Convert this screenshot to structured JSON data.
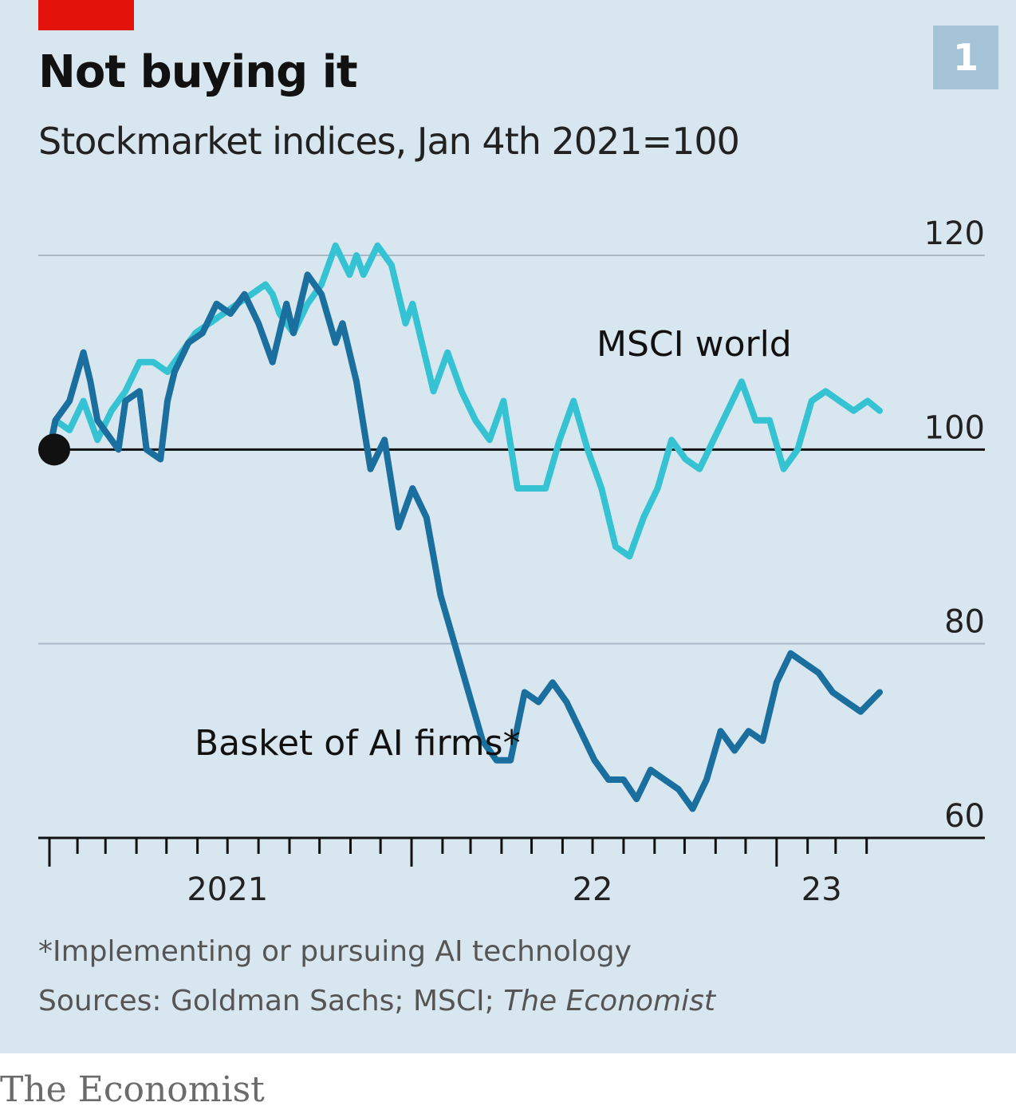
{
  "header": {
    "title": "Not buying it",
    "subtitle": "Stockmarket indices, Jan 4th 2021=100",
    "chart_number": "1"
  },
  "footer": {
    "footnote": "*Implementing or pursuing AI technology",
    "sources_prefix": "Sources: Goldman Sachs; MSCI; ",
    "sources_italic": "The Economist",
    "brand": "The Economist"
  },
  "colors": {
    "background": "#d8e6f0",
    "brand_red": "#e3120b",
    "msci": "#35c3d3",
    "ai_basket": "#1a6f9e",
    "baseline": "#111111",
    "grid": "#a9b9c6"
  },
  "chart_data": {
    "type": "line",
    "title": "Not buying it",
    "subtitle": "Stockmarket indices, Jan 4th 2021=100",
    "ylim": [
      60,
      120
    ],
    "yticks": [
      60,
      80,
      100,
      120
    ],
    "baseline": 100,
    "xlim": [
      "2021-01-04",
      "2023-04-14"
    ],
    "xtick_labels": [
      {
        "label": "2021",
        "date": "2021-07-01"
      },
      {
        "label": "22",
        "date": "2022-07-01"
      },
      {
        "label": "23",
        "date": "2023-02-15"
      }
    ],
    "year_boundaries": [
      "2021-01-01",
      "2022-01-01",
      "2023-01-01"
    ],
    "month_ticks": [
      "2021-02-01",
      "2021-03-01",
      "2021-04-01",
      "2021-05-01",
      "2021-06-01",
      "2021-07-01",
      "2021-08-01",
      "2021-09-01",
      "2021-10-01",
      "2021-11-01",
      "2021-12-01",
      "2022-02-01",
      "2022-03-01",
      "2022-04-01",
      "2022-05-01",
      "2022-06-01",
      "2022-07-01",
      "2022-08-01",
      "2022-09-01",
      "2022-10-01",
      "2022-11-01",
      "2022-12-01",
      "2023-02-01",
      "2023-03-01",
      "2023-04-01"
    ],
    "start_marker": {
      "date": "2021-01-04",
      "value": 100
    },
    "grid": true,
    "series": [
      {
        "name": "MSCI world",
        "color": "#35c3d3",
        "dates": [
          "2021-01-04",
          "2021-01-10",
          "2021-01-24",
          "2021-02-07",
          "2021-02-21",
          "2021-03-07",
          "2021-03-21",
          "2021-04-04",
          "2021-04-18",
          "2021-05-02",
          "2021-05-16",
          "2021-05-30",
          "2021-06-13",
          "2021-06-27",
          "2021-07-11",
          "2021-07-25",
          "2021-08-08",
          "2021-08-15",
          "2021-08-22",
          "2021-09-05",
          "2021-09-19",
          "2021-10-03",
          "2021-10-17",
          "2021-10-31",
          "2021-11-07",
          "2021-11-14",
          "2021-11-28",
          "2021-12-12",
          "2021-12-26",
          "2022-01-02",
          "2022-01-23",
          "2022-02-06",
          "2022-02-20",
          "2022-03-06",
          "2022-03-20",
          "2022-04-03",
          "2022-04-17",
          "2022-05-01",
          "2022-05-15",
          "2022-05-29",
          "2022-06-12",
          "2022-06-26",
          "2022-07-10",
          "2022-07-24",
          "2022-08-07",
          "2022-08-21",
          "2022-09-04",
          "2022-09-18",
          "2022-10-02",
          "2022-10-16",
          "2022-10-30",
          "2022-11-13",
          "2022-11-27",
          "2022-12-11",
          "2022-12-25",
          "2023-01-08",
          "2023-01-22",
          "2023-02-05",
          "2023-02-19",
          "2023-03-05",
          "2023-03-19",
          "2023-04-02",
          "2023-04-14"
        ],
        "values": [
          100,
          103,
          102,
          105,
          101,
          104,
          106,
          109,
          109,
          108,
          110,
          112,
          113,
          114,
          115,
          116,
          117,
          116,
          114,
          112,
          115,
          117,
          121,
          118,
          120,
          118,
          121,
          119,
          113,
          115,
          106,
          110,
          106,
          103,
          101,
          105,
          96,
          96,
          96,
          101,
          105,
          100,
          96,
          90,
          89,
          93,
          96,
          101,
          99,
          98,
          101,
          104,
          107,
          103,
          103,
          98,
          100,
          105,
          106,
          105,
          104,
          105,
          104
        ]
      },
      {
        "name": "Basket of AI firms*",
        "color": "#1a6f9e",
        "dates": [
          "2021-01-04",
          "2021-01-10",
          "2021-01-24",
          "2021-02-07",
          "2021-02-14",
          "2021-02-21",
          "2021-03-07",
          "2021-03-14",
          "2021-03-21",
          "2021-04-04",
          "2021-04-11",
          "2021-04-25",
          "2021-05-02",
          "2021-05-09",
          "2021-05-23",
          "2021-06-06",
          "2021-06-20",
          "2021-07-04",
          "2021-07-18",
          "2021-08-01",
          "2021-08-15",
          "2021-08-29",
          "2021-09-05",
          "2021-09-19",
          "2021-10-03",
          "2021-10-17",
          "2021-10-24",
          "2021-11-07",
          "2021-11-21",
          "2021-12-05",
          "2021-12-19",
          "2022-01-02",
          "2022-01-16",
          "2022-01-30",
          "2022-02-13",
          "2022-02-27",
          "2022-03-13",
          "2022-03-27",
          "2022-04-10",
          "2022-04-24",
          "2022-05-08",
          "2022-05-22",
          "2022-06-05",
          "2022-06-19",
          "2022-07-03",
          "2022-07-17",
          "2022-08-01",
          "2022-08-14",
          "2022-08-28",
          "2022-09-11",
          "2022-09-25",
          "2022-10-09",
          "2022-10-23",
          "2022-11-06",
          "2022-11-20",
          "2022-12-04",
          "2022-12-18",
          "2023-01-01",
          "2023-01-15",
          "2023-01-29",
          "2023-02-12",
          "2023-02-26",
          "2023-03-12",
          "2023-03-26",
          "2023-04-14"
        ],
        "values": [
          100,
          103,
          105,
          110,
          107,
          103,
          101,
          100,
          105,
          106,
          100,
          99,
          105,
          108,
          111,
          112,
          115,
          114,
          116,
          113,
          109,
          115,
          112,
          118,
          116,
          111,
          113,
          107,
          98,
          101,
          92,
          96,
          93,
          85,
          80,
          75,
          70,
          68,
          68,
          75,
          74,
          76,
          74,
          71,
          68,
          66,
          66,
          64,
          67,
          66,
          65,
          63,
          66,
          71,
          69,
          71,
          70,
          76,
          79,
          78,
          77,
          75,
          74,
          73,
          75
        ]
      }
    ]
  }
}
